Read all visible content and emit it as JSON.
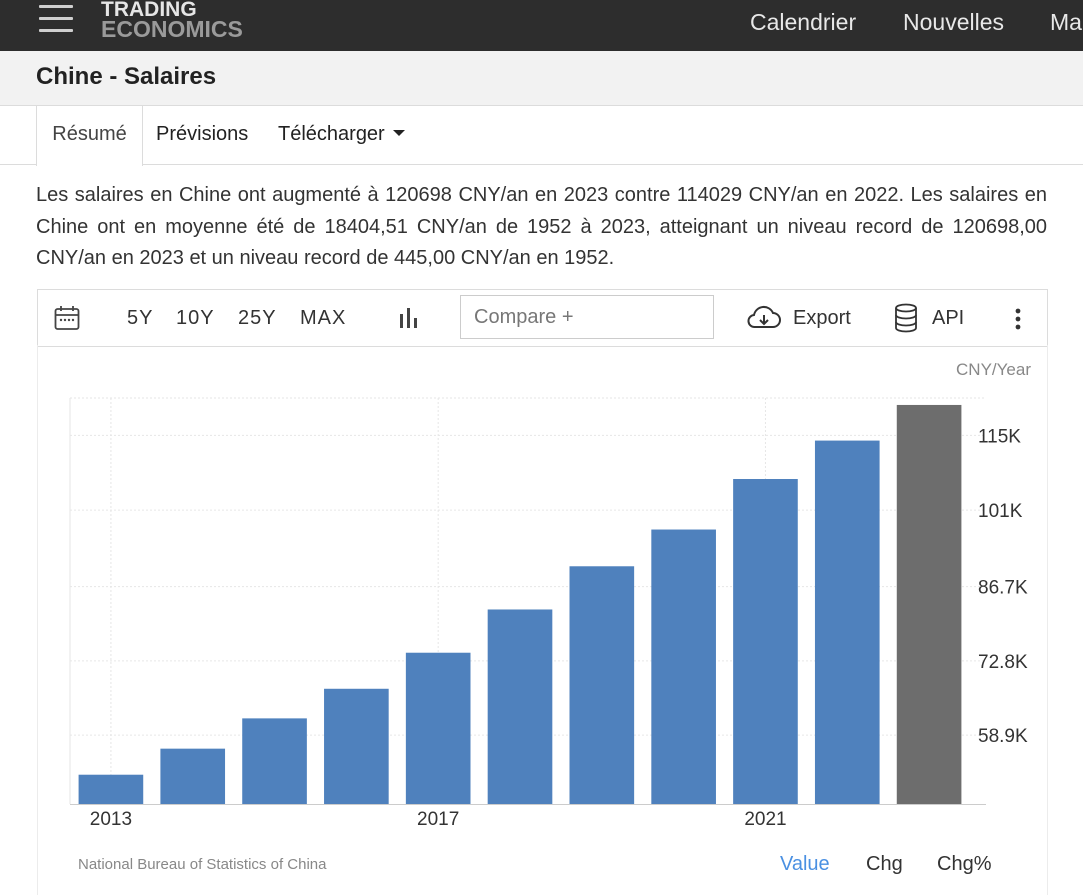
{
  "nav": {
    "logo_line1": "TRADING",
    "logo_line2": "ECONOMICS",
    "links": [
      "Calendrier",
      "Nouvelles",
      "Ma"
    ]
  },
  "title": "Chine - Salaires",
  "tabs": {
    "summary": "Résumé",
    "forecast": "Prévisions",
    "download": "Télécharger"
  },
  "summary_text": "Les salaires en Chine ont augmenté à 120698 CNY/an en 2023 contre 114029 CNY/an en 2022. Les salaires en Chine ont en moyenne été de 18404,51 CNY/an de 1952 à 2023, atteignant un niveau record de 120698,00 CNY/an en 2023 et un niveau record de 445,00 CNY/an en 1952.",
  "toolbar": {
    "ranges": [
      "5Y",
      "10Y",
      "25Y",
      "MAX"
    ],
    "compare_placeholder": "Compare +",
    "export_label": "Export",
    "api_label": "API"
  },
  "chart_data": {
    "type": "bar",
    "unit": "CNY/Year",
    "x": [
      2013,
      2014,
      2015,
      2016,
      2017,
      2018,
      2019,
      2020,
      2021,
      2022,
      2023
    ],
    "values": [
      51483,
      56360,
      62029,
      67569,
      74318,
      82413,
      90501,
      97379,
      106837,
      114029,
      120698
    ],
    "highlight_last": true,
    "colors": {
      "bar": "#4f81bd",
      "last_bar": "#6d6d6d",
      "grid": "#e6e6e6",
      "axis": "#cccccc"
    },
    "ylim": [
      46000,
      122000
    ],
    "y_ticks": [
      {
        "value": 58900,
        "label": "58.9K"
      },
      {
        "value": 72800,
        "label": "72.8K"
      },
      {
        "value": 86700,
        "label": "86.7K"
      },
      {
        "value": 101000,
        "label": "101K"
      },
      {
        "value": 115000,
        "label": "115K"
      }
    ],
    "x_tick_labels": [
      {
        "year": 2013,
        "label": "2013"
      },
      {
        "year": 2017,
        "label": "2017"
      },
      {
        "year": 2021,
        "label": "2021"
      }
    ],
    "grid": true,
    "source": "National Bureau of Statistics of China"
  },
  "footer_tabs": {
    "value": "Value",
    "chg": "Chg",
    "chgpct": "Chg%",
    "active_color": "#4a90e2"
  }
}
